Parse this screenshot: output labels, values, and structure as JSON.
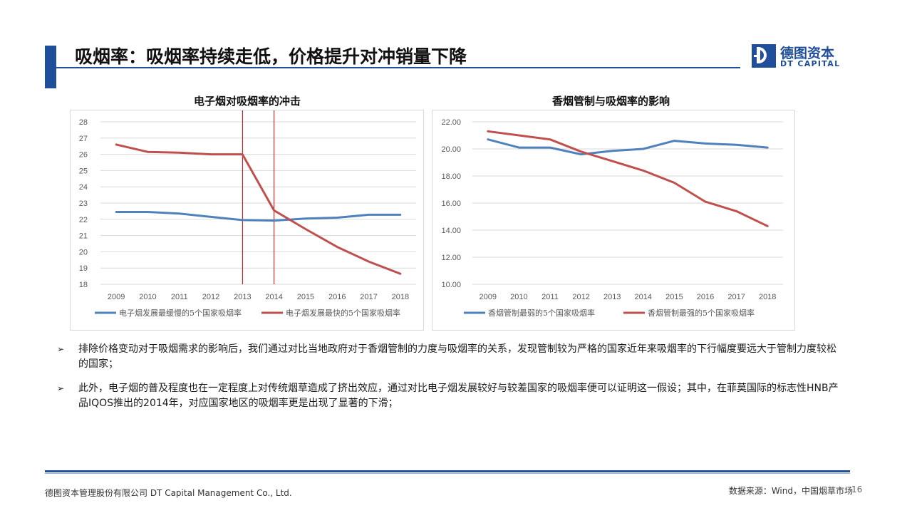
{
  "header": {
    "title": "吸烟率：吸烟率持续走低，价格提升对冲销量下降",
    "logo_cn": "德图资本",
    "logo_en": "DT CAPITAL",
    "accent": "#1f4e9a"
  },
  "chart_data": [
    {
      "type": "line",
      "title": "电子烟对吸烟率的冲击",
      "x": [
        "2009",
        "2010",
        "2011",
        "2012",
        "2013",
        "2014",
        "2015",
        "2016",
        "2017",
        "2018"
      ],
      "ylim": [
        18,
        28
      ],
      "yticks": [
        "28",
        "27",
        "26",
        "25",
        "24",
        "23",
        "22",
        "21",
        "20",
        "19",
        "18"
      ],
      "grid": true,
      "legend": "bottom",
      "markers": [
        "2013",
        "2014"
      ],
      "series": [
        {
          "name": "电子烟发展最缓慢的5个国家吸烟率",
          "color": "#4f81bd",
          "values": [
            22.45,
            22.45,
            22.35,
            22.15,
            21.95,
            21.92,
            22.05,
            22.1,
            22.28,
            22.28
          ]
        },
        {
          "name": "电子烟发展最快的5个国家吸烟率",
          "color": "#c0504d",
          "values": [
            26.6,
            26.15,
            26.1,
            26.0,
            26.0,
            22.55,
            21.4,
            20.3,
            19.4,
            18.65
          ]
        }
      ]
    },
    {
      "type": "line",
      "title": "香烟管制与吸烟率的影响",
      "x": [
        "2009",
        "2010",
        "2011",
        "2012",
        "2013",
        "2014",
        "2015",
        "2016",
        "2017",
        "2018"
      ],
      "ylim": [
        10,
        22
      ],
      "yticks": [
        "22.00",
        "20.00",
        "18.00",
        "16.00",
        "14.00",
        "12.00",
        "10.00"
      ],
      "grid": true,
      "legend": "bottom",
      "series": [
        {
          "name": "香烟管制最弱的5个国家吸烟率",
          "color": "#4f81bd",
          "values": [
            20.7,
            20.1,
            20.1,
            19.6,
            19.85,
            20.0,
            20.6,
            20.4,
            20.3,
            20.1
          ]
        },
        {
          "name": "香烟管制最强的5个国家吸烟率",
          "color": "#c0504d",
          "values": [
            21.3,
            21.0,
            20.7,
            19.8,
            19.1,
            18.4,
            17.5,
            16.1,
            15.4,
            14.3
          ]
        }
      ]
    }
  ],
  "bullets": [
    "排除价格变动对于吸烟需求的影响后，我们通过对比当地政府对于香烟管制的力度与吸烟率的关系，发现管制较为严格的国家近年来吸烟率的下行幅度要远大于管制力度较松的国家；",
    "此外，电子烟的普及程度也在一定程度上对传统烟草造成了挤出效应，通过对比电子烟发展较好与较差国家的吸烟率便可以证明这一假设；其中，在菲莫国际的标志性HNB产品IQOS推出的2014年，对应国家地区的吸烟率更是出现了显著的下滑；"
  ],
  "footer": {
    "company": "德图资本管理股份有限公司  DT Capital  Management  Co., Ltd.",
    "source": "数据来源：Wind，中国烟草市场",
    "page": "16"
  }
}
